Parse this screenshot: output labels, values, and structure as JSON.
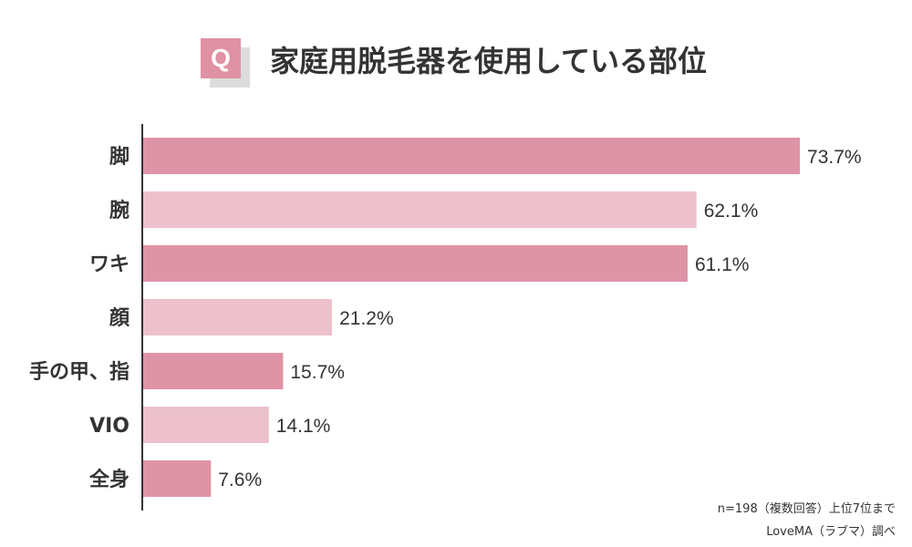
{
  "header": {
    "badge": "Q",
    "title": "家庭用脱毛器を使用している部位"
  },
  "footnotes": {
    "sample": "n=198（複数回答）上位7位まで",
    "source": "LoveMA（ラブマ）調べ"
  },
  "colors": {
    "badge": "#e091a4",
    "bar_dark": "#df93a6",
    "bar_light": "#edc1cc",
    "axis": "#333333"
  },
  "chart_data": {
    "type": "bar",
    "orientation": "horizontal",
    "title": "家庭用脱毛器を使用している部位",
    "categories": [
      "脚",
      "腕",
      "ワキ",
      "顔",
      "手の甲、指",
      "VIO",
      "全身"
    ],
    "values": [
      73.7,
      62.1,
      61.1,
      21.2,
      15.7,
      14.1,
      7.6
    ],
    "labels": [
      "73.7%",
      "62.1%",
      "61.1%",
      "21.2%",
      "15.7%",
      "14.1%",
      "7.6%"
    ],
    "unit": "%",
    "xlim": [
      0,
      100
    ],
    "grid": false,
    "legend": "none"
  }
}
